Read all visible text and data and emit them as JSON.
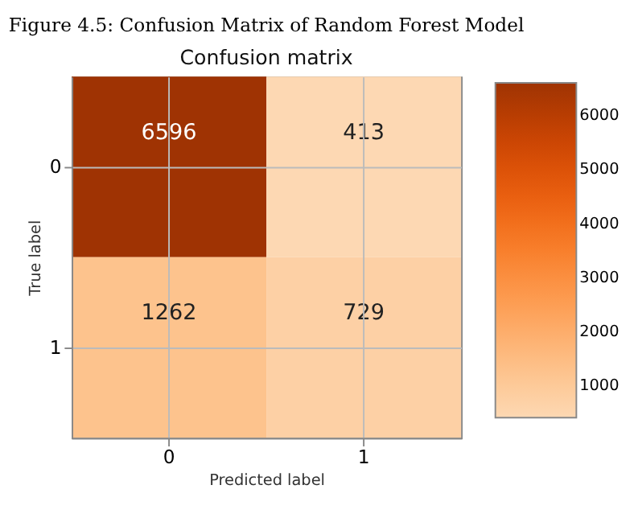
{
  "chart_data": {
    "type": "heatmap",
    "title": "Confusion matrix",
    "xlabel": "Predicted label",
    "ylabel": "True label",
    "annotations": [
      "Figure 4.5: Confusion Matrix of Random Forest Model"
    ],
    "categories": [
      "0",
      "1"
    ],
    "y_categories": [
      "0",
      "1"
    ],
    "cells": [
      [
        6596,
        413
      ],
      [
        1262,
        729
      ]
    ],
    "clim": [
      413,
      6596
    ],
    "cticks": [
      1000,
      2000,
      3000,
      4000,
      5000,
      6000
    ],
    "data_labels": true,
    "grid": true
  }
}
